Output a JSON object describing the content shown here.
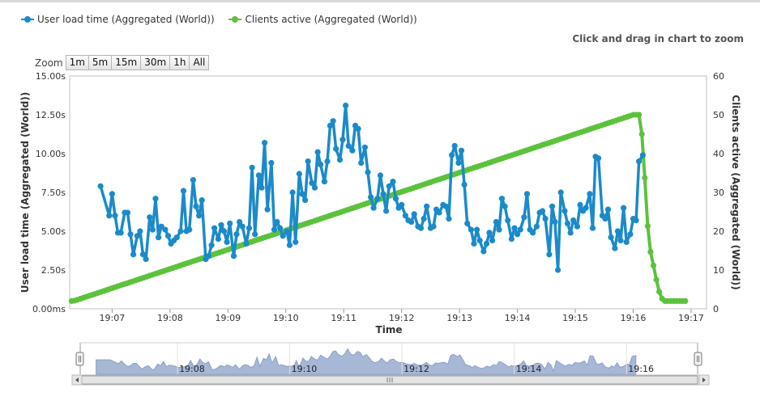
{
  "legend": {
    "series1_label": "User load time (Aggregated (World))",
    "series2_label": "Clients active (Aggregated (World))"
  },
  "hint": "Click and drag in chart to zoom",
  "zoom": {
    "label": "Zoom",
    "buttons": [
      "1m",
      "5m",
      "15m",
      "30m",
      "1h",
      "All"
    ]
  },
  "colors": {
    "load": "#1b8ac9",
    "clients": "#5cc23c",
    "navigator_fill": "#a6b8d6",
    "navigator_line": "#8aa0c8"
  },
  "chart_data": {
    "type": "line",
    "xlabel": "Time",
    "ylabel_left": "User load time (Aggregated (World))",
    "ylabel_right": "Clients active (Aggregated (World))",
    "x_range": [
      "19:06:16",
      "19:17:16"
    ],
    "x_ticks": [
      "19:07",
      "19:08",
      "19:09",
      "19:10",
      "19:11",
      "19:12",
      "19:13",
      "19:14",
      "19:15",
      "19:16",
      "19:17"
    ],
    "y_left_ticks": [
      "0.00ms",
      "2.50s",
      "5.00s",
      "7.50s",
      "10.00s",
      "12.50s",
      "15.00s"
    ],
    "y_left_range_s": [
      0,
      15
    ],
    "y_right_ticks": [
      "0",
      "10",
      "20",
      "30",
      "40",
      "50",
      "60"
    ],
    "y_right_range": [
      0,
      60
    ],
    "grid": true,
    "legend_position": "top-left",
    "series": [
      {
        "name": "User load time (Aggregated (World))",
        "axis": "left",
        "unit": "s",
        "time": [
          "19:06:48",
          "19:06:57",
          "19:07:00",
          "19:07:03",
          "19:07:06",
          "19:07:09",
          "19:07:13",
          "19:07:16",
          "19:07:19",
          "19:07:22",
          "19:07:26",
          "19:07:29",
          "19:07:32",
          "19:07:35",
          "19:07:39",
          "19:07:42",
          "19:07:45",
          "19:07:48",
          "19:07:51",
          "19:07:55",
          "19:07:58",
          "19:08:01",
          "19:08:04",
          "19:08:07",
          "19:08:11",
          "19:08:14",
          "19:08:17",
          "19:08:20",
          "19:08:24",
          "19:08:27",
          "19:08:30",
          "19:08:33",
          "19:08:37",
          "19:08:40",
          "19:08:43",
          "19:08:46",
          "19:08:50",
          "19:08:53",
          "19:08:56",
          "19:08:59",
          "19:09:02",
          "19:09:06",
          "19:09:09",
          "19:09:12",
          "19:09:15",
          "19:09:19",
          "19:09:22",
          "19:09:25",
          "19:09:28",
          "19:09:32",
          "19:09:35",
          "19:09:38",
          "19:09:41",
          "19:09:45",
          "19:09:48",
          "19:09:51",
          "19:09:54",
          "19:09:57",
          "19:10:01",
          "19:10:04",
          "19:10:07",
          "19:10:10",
          "19:10:14",
          "19:10:17",
          "19:10:20",
          "19:10:23",
          "19:10:27",
          "19:10:30",
          "19:10:33",
          "19:10:36",
          "19:10:40",
          "19:10:43",
          "19:10:46",
          "19:10:49",
          "19:10:52",
          "19:10:56",
          "19:10:59",
          "19:11:02",
          "19:11:05",
          "19:11:09",
          "19:11:12",
          "19:11:15",
          "19:11:18",
          "19:11:22",
          "19:11:25",
          "19:11:28",
          "19:11:31",
          "19:11:35",
          "19:11:38",
          "19:11:41",
          "19:11:44",
          "19:11:47",
          "19:11:51",
          "19:11:54",
          "19:11:57",
          "19:12:00",
          "19:12:04",
          "19:12:07",
          "19:12:10",
          "19:12:13",
          "19:12:17",
          "19:12:20",
          "19:12:23",
          "19:12:26",
          "19:12:30",
          "19:12:33",
          "19:12:36",
          "19:12:39",
          "19:12:43",
          "19:12:46",
          "19:12:49",
          "19:12:52",
          "19:12:55",
          "19:12:59",
          "19:13:02",
          "19:13:05",
          "19:13:08",
          "19:13:12",
          "19:13:15",
          "19:13:18",
          "19:13:21",
          "19:13:25",
          "19:13:28",
          "19:13:31",
          "19:13:34",
          "19:13:38",
          "19:13:41",
          "19:13:44",
          "19:13:47",
          "19:13:50",
          "19:13:54",
          "19:13:57",
          "19:14:00",
          "19:14:03",
          "19:14:07",
          "19:14:10",
          "19:14:13",
          "19:14:16",
          "19:14:20",
          "19:14:23",
          "19:14:26",
          "19:14:29",
          "19:14:33",
          "19:14:36",
          "19:14:39",
          "19:14:42",
          "19:14:45",
          "19:14:49",
          "19:14:52",
          "19:14:55",
          "19:14:58",
          "19:15:02",
          "19:15:05",
          "19:15:08",
          "19:15:11",
          "19:15:15",
          "19:15:18",
          "19:15:21",
          "19:15:24",
          "19:15:28",
          "19:15:31",
          "19:15:34",
          "19:15:37",
          "19:15:41",
          "19:15:44",
          "19:15:47",
          "19:15:50",
          "19:15:53",
          "19:15:57",
          "19:16:00",
          "19:16:03",
          "19:16:06",
          "19:16:10"
        ],
        "values": [
          7.9,
          6.0,
          7.4,
          6.0,
          4.9,
          4.9,
          6.2,
          6.2,
          4.8,
          3.5,
          4.7,
          5.0,
          3.5,
          3.2,
          5.9,
          5.1,
          7.1,
          4.6,
          5.3,
          5.1,
          4.7,
          4.2,
          4.4,
          4.6,
          5.0,
          7.6,
          5.0,
          5.1,
          8.3,
          6.6,
          6.0,
          7.0,
          3.2,
          3.4,
          4.1,
          5.2,
          4.5,
          5.4,
          5.0,
          4.3,
          5.5,
          3.4,
          4.8,
          5.6,
          5.3,
          4.2,
          5.2,
          9.1,
          4.8,
          8.6,
          7.8,
          10.7,
          6.4,
          9.4,
          5.1,
          5.6,
          5.2,
          4.7,
          5.0,
          4.1,
          7.5,
          4.3,
          8.7,
          7.4,
          7.0,
          9.5,
          8.1,
          7.8,
          10.1,
          9.3,
          8.2,
          9.5,
          11.8,
          12.1,
          10.3,
          9.6,
          10.9,
          13.1,
          10.5,
          10.2,
          11.8,
          11.6,
          9.4,
          10.4,
          8.8,
          7.2,
          6.5,
          7.1,
          8.6,
          7.4,
          6.3,
          7.9,
          8.2,
          7.1,
          6.5,
          6.7,
          6.0,
          5.7,
          5.6,
          6.1,
          5.3,
          5.2,
          5.8,
          6.6,
          5.2,
          5.3,
          6.4,
          6.2,
          6.7,
          6.6,
          5.8,
          9.9,
          10.5,
          9.4,
          10.2,
          8.0,
          5.5,
          5.1,
          4.2,
          5.1,
          4.4,
          3.7,
          4.2,
          4.9,
          4.4,
          5.6,
          5.1,
          7.1,
          6.6,
          5.7,
          4.5,
          5.2,
          4.8,
          5.1,
          5.9,
          7.4,
          5.1,
          4.9,
          5.3,
          6.2,
          6.3,
          5.8,
          3.5,
          6.6,
          5.6,
          2.5,
          7.5,
          6.3,
          5.5,
          4.9,
          5.7,
          5.3,
          6.7,
          6.3,
          6.5,
          7.4,
          5.2,
          9.8,
          9.7,
          6.0,
          5.8,
          6.4,
          4.6,
          3.9,
          5.0,
          4.4,
          6.5,
          4.3,
          4.8,
          5.8,
          5.7,
          9.5,
          9.9
        ]
      },
      {
        "name": "Clients active (Aggregated (World))",
        "axis": "right",
        "time": [
          "19:06:18",
          "19:06:20",
          "19:16:00",
          "19:16:06",
          "19:16:09",
          "19:16:13",
          "19:16:16",
          "19:16:22",
          "19:16:26",
          "19:16:31",
          "19:16:40",
          "19:16:55"
        ],
        "values": [
          2,
          2,
          50,
          50,
          45,
          30,
          17,
          10,
          5,
          2,
          2,
          2
        ],
        "note": "rises steadily from 2 (19:06:16) to 50 (19:16:00), then drops back to 2 by 19:16:31"
      }
    ]
  },
  "navigator": {
    "ticks": [
      "19:08",
      "19:10",
      "19:12",
      "19:14",
      "19:16"
    ]
  }
}
